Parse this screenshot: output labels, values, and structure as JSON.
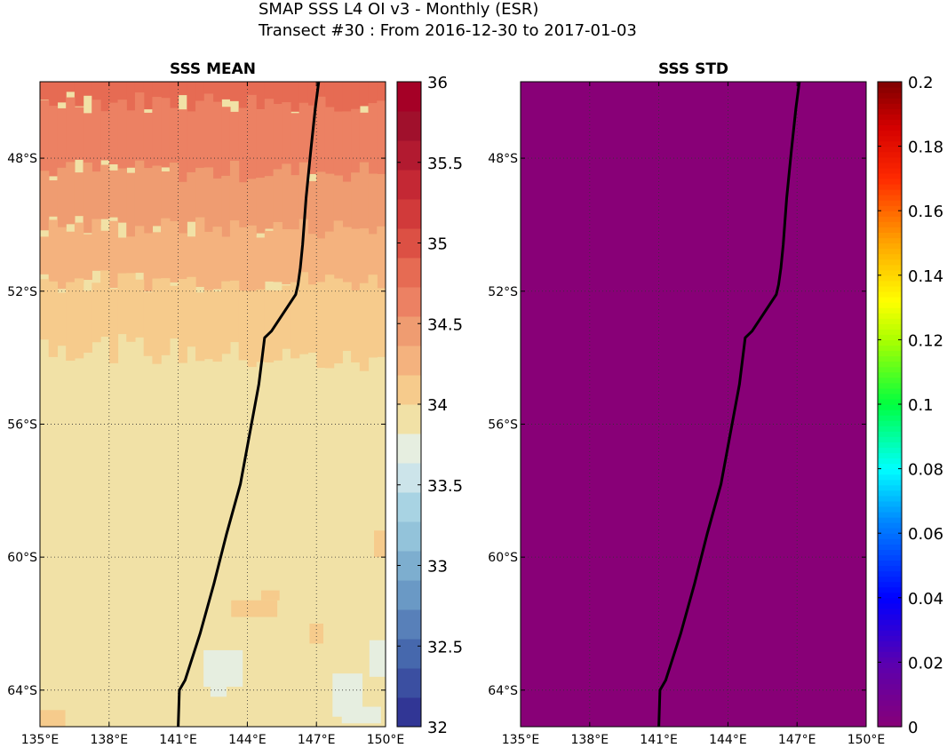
{
  "figure": {
    "title_line1": "SMAP SSS L4 OI v3 - Monthly (ESR)",
    "title_line2": "Transect #30 : From 2016-12-30 to 2017-01-03"
  },
  "chart_data": [
    {
      "type": "heatmap",
      "title": "SSS MEAN",
      "xlim": [
        135,
        150
      ],
      "ylim": [
        -65.1,
        -45.7
      ],
      "x_ticks": [
        "135°E",
        "138°E",
        "141°E",
        "144°E",
        "147°E",
        "150°E"
      ],
      "x_tick_values": [
        135,
        138,
        141,
        144,
        147,
        150
      ],
      "y_ticks": [
        "48°S",
        "52°S",
        "56°S",
        "60°S",
        "64°S"
      ],
      "y_tick_values": [
        -48,
        -52,
        -56,
        -60,
        -64
      ],
      "grid": true,
      "colorbar": {
        "colormap": "RdYlBu reversed, 22 discrete levels",
        "range": [
          32,
          36
        ],
        "ticks": [
          "32",
          "32.5",
          "33",
          "33.5",
          "34",
          "34.5",
          "35",
          "35.5",
          "36"
        ],
        "tick_values": [
          32,
          32.5,
          33,
          33.5,
          34,
          34.5,
          35,
          35.5,
          36
        ],
        "colors": [
          "#313695",
          "#3b4fa1",
          "#4668ad",
          "#5880b9",
          "#6a99c5",
          "#7daecf",
          "#93c3da",
          "#a8d3e3",
          "#cce4ea",
          "#e6eee0",
          "#f1e1a6",
          "#f6cb8c",
          "#f4b27e",
          "#ef9c71",
          "#ec8163",
          "#e66b53",
          "#dc5044",
          "#d13a3a",
          "#c42834",
          "#b21a30",
          "#a0102c",
          "#a50026"
        ]
      },
      "regions": [
        {
          "name": "salinity ~34.8",
          "value": 34.8,
          "lat_range": [
            -45.7,
            -46.3
          ]
        },
        {
          "name": "salinity ~34.6",
          "value": 34.6,
          "lat_range": [
            -46.3,
            -48.4
          ]
        },
        {
          "name": "salinity ~34.4",
          "value": 34.4,
          "lat_range": [
            -48.4,
            -50.1
          ]
        },
        {
          "name": "salinity ~34.2",
          "value": 34.2,
          "lat_range": [
            -50.1,
            -51.7
          ]
        },
        {
          "name": "salinity ~34.05",
          "value": 34.05,
          "lat_range": [
            -51.7,
            -53.6
          ]
        },
        {
          "name": "salinity ~33.95",
          "value": 33.95,
          "lat_range": [
            -53.6,
            -65.1
          ]
        },
        {
          "name": "salinity ~33.7 patches",
          "value": 33.7,
          "lat_range": [
            -62.8,
            -65.1
          ]
        }
      ],
      "transect": {
        "lon": [
          147.1,
          146.95,
          146.75,
          146.55,
          146.4,
          146.3,
          146.2,
          146.1,
          145.05,
          144.75,
          144.5,
          144.1,
          143.7,
          143.1,
          142.55,
          141.95,
          141.3,
          141.05,
          141.0
        ],
        "lat": [
          -45.7,
          -46.5,
          -47.8,
          -49.2,
          -50.6,
          -51.3,
          -51.8,
          -52.1,
          -53.2,
          -53.4,
          -54.8,
          -56.3,
          -57.8,
          -59.3,
          -60.8,
          -62.3,
          -63.7,
          -64.0,
          -65.1
        ]
      }
    },
    {
      "type": "heatmap",
      "title": "SSS STD",
      "xlim": [
        135,
        150
      ],
      "ylim": [
        -65.1,
        -45.7
      ],
      "x_ticks": [
        "135°E",
        "138°E",
        "141°E",
        "144°E",
        "147°E",
        "150°E"
      ],
      "x_tick_values": [
        135,
        138,
        141,
        144,
        147,
        150
      ],
      "y_ticks": [
        "48°S",
        "52°S",
        "56°S",
        "60°S",
        "64°S"
      ],
      "y_tick_values": [
        -48,
        -52,
        -56,
        -60,
        -64
      ],
      "grid": true,
      "field_value": 0,
      "field_color": "#880077",
      "colorbar": {
        "colormap": "jet-like with magenta bottom",
        "range": [
          0,
          0.2
        ],
        "ticks": [
          "0",
          "0.02",
          "0.04",
          "0.06",
          "0.08",
          "0.1",
          "0.12",
          "0.14",
          "0.16",
          "0.18",
          "0.2"
        ],
        "tick_values": [
          0,
          0.02,
          0.04,
          0.06,
          0.08,
          0.1,
          0.12,
          0.14,
          0.16,
          0.18,
          0.2
        ],
        "stops": [
          {
            "v": 0.0,
            "color": "#880077"
          },
          {
            "v": 0.1,
            "color": "#5a00b0"
          },
          {
            "v": 0.2,
            "color": "#0000ff"
          },
          {
            "v": 0.32,
            "color": "#0088ff"
          },
          {
            "v": 0.4,
            "color": "#00ffff"
          },
          {
            "v": 0.5,
            "color": "#00ff40"
          },
          {
            "v": 0.6,
            "color": "#aaff00"
          },
          {
            "v": 0.66,
            "color": "#ffff00"
          },
          {
            "v": 0.75,
            "color": "#ffa500"
          },
          {
            "v": 0.85,
            "color": "#ff2a00"
          },
          {
            "v": 0.93,
            "color": "#d40000"
          },
          {
            "v": 1.0,
            "color": "#7f0000"
          }
        ]
      },
      "transect": {
        "lon": [
          147.1,
          146.95,
          146.75,
          146.55,
          146.4,
          146.3,
          146.2,
          146.1,
          145.05,
          144.75,
          144.5,
          144.1,
          143.7,
          143.1,
          142.55,
          141.95,
          141.3,
          141.05,
          141.0
        ],
        "lat": [
          -45.7,
          -46.5,
          -47.8,
          -49.2,
          -50.6,
          -51.3,
          -51.8,
          -52.1,
          -53.2,
          -53.4,
          -54.8,
          -56.3,
          -57.8,
          -59.3,
          -60.8,
          -62.3,
          -63.7,
          -64.0,
          -65.1
        ]
      }
    }
  ]
}
